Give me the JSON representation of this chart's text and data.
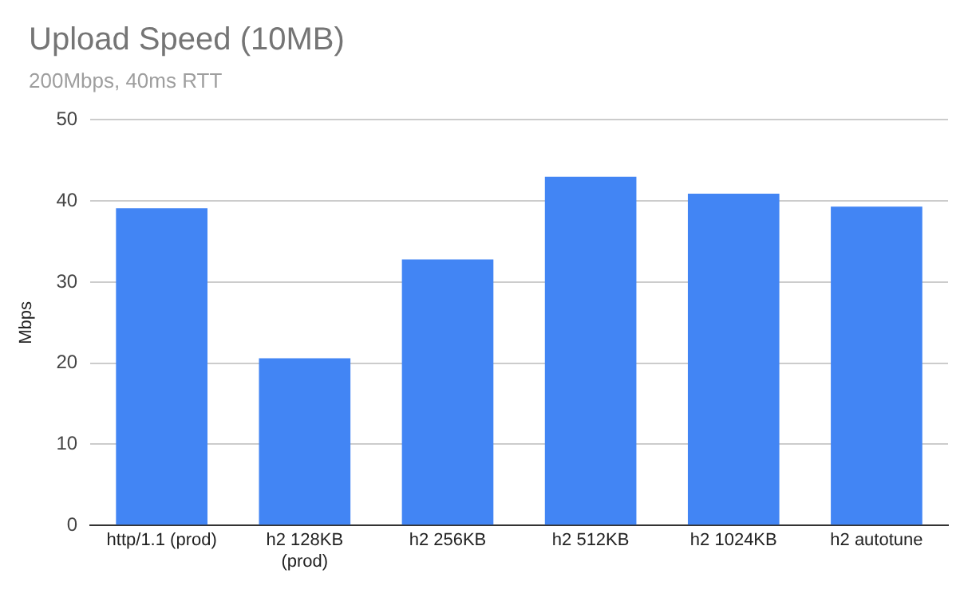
{
  "chart_data": {
    "type": "bar",
    "title": "Upload Speed (10MB)",
    "subtitle": "200Mbps, 40ms RTT",
    "ylabel": "Mbps",
    "categories": [
      "http/1.1 (prod)",
      "h2 128KB (prod)",
      "h2 256KB",
      "h2 512KB",
      "h2 1024KB",
      "h2 autotune"
    ],
    "values": [
      39.1,
      20.6,
      32.8,
      43.0,
      40.9,
      39.3
    ],
    "color": "#4285f4",
    "ylim": [
      0,
      50
    ],
    "yticks": [
      0,
      10,
      20,
      30,
      40,
      50
    ],
    "grid": "y"
  }
}
